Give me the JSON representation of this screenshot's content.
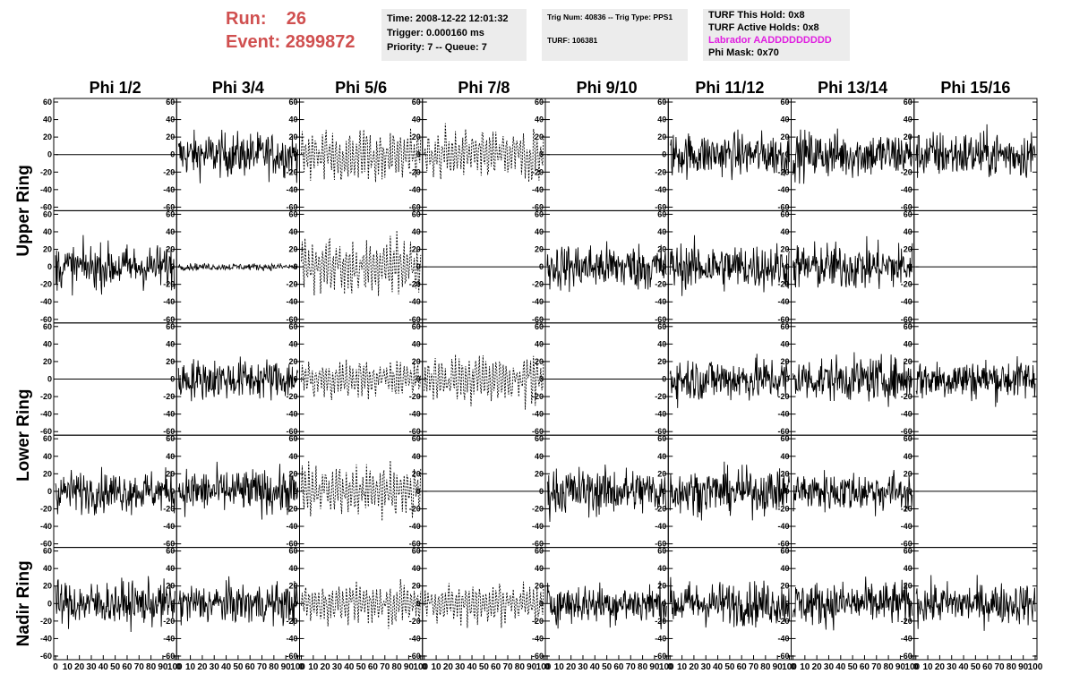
{
  "header": {
    "run_label": "Run:",
    "run_value": "26",
    "event_label": "Event:",
    "event_value": "2899872",
    "info1": [
      "Time: 2008-12-22 12:01:32",
      "Trigger: 0.000160 ms",
      "Priority: 7 -- Queue: 7"
    ],
    "info2": [
      "Trig Num: 40836 -- Trig Type: PPS1",
      "",
      "TURF: 106381"
    ],
    "info3": [
      "TURF This Hold: 0x8",
      "TURF Active Holds: 0x8",
      "Labrador AADDDDDDDDD",
      "Phi Mask: 0x70"
    ],
    "colors": {
      "run": "#d05050",
      "labrador": "#e020e0",
      "panel": "#ececec"
    }
  },
  "chart_data": {
    "type": "line",
    "layout": "grid of waveform panels",
    "column_labels": [
      "Phi 1/2",
      "Phi 3/4",
      "Phi 5/6",
      "Phi 7/8",
      "Phi 9/10",
      "Phi 11/12",
      "Phi 13/14",
      "Phi 15/16"
    ],
    "row_group_labels": [
      "Upper Ring",
      "Lower Ring",
      "Nadir Ring"
    ],
    "panel_rows": 5,
    "xlim": [
      0,
      100
    ],
    "ylim": [
      -60,
      60
    ],
    "y_ticks": [
      -60,
      -40,
      -20,
      0,
      20,
      40,
      60
    ],
    "x_ticks": [
      0,
      10,
      20,
      30,
      40,
      50,
      60,
      70,
      80,
      90,
      100
    ],
    "x_tick_labels": [
      "0",
      "10",
      "20",
      "30",
      "40",
      "50",
      "60",
      "70",
      "80",
      "90",
      "100"
    ],
    "panels": [
      [
        "flat",
        "noise",
        "dashed",
        "dashed",
        "flat",
        "noise",
        "noise",
        "noise"
      ],
      [
        "noise",
        "small",
        "dashed",
        "flat",
        "noise",
        "noise",
        "noise",
        "flat"
      ],
      [
        "flat",
        "noise",
        "dashed",
        "dashed",
        "flat",
        "noise",
        "noise",
        "noise"
      ],
      [
        "noise",
        "noise",
        "dashed",
        "flat",
        "noise",
        "noise",
        "noise",
        "flat"
      ],
      [
        "noise",
        "noise",
        "dashed",
        "dashed",
        "noise",
        "noise",
        "noise",
        "noise"
      ]
    ],
    "amplitudes": [
      [
        0,
        14,
        17,
        16,
        0,
        14,
        15,
        15
      ],
      [
        14,
        2,
        18,
        0,
        15,
        15,
        15,
        0
      ],
      [
        0,
        13,
        12,
        15,
        0,
        14,
        14,
        13
      ],
      [
        13,
        14,
        16,
        0,
        15,
        14,
        13,
        0
      ],
      [
        14,
        13,
        13,
        12,
        13,
        14,
        14,
        13
      ]
    ],
    "grid": false
  }
}
